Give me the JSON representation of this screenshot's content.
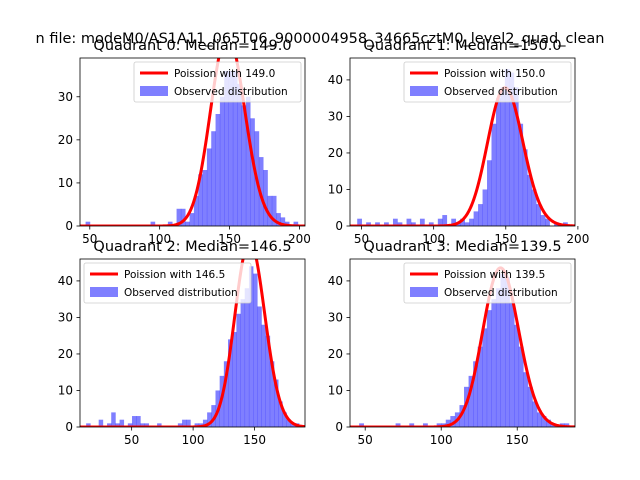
{
  "figure": {
    "suptitle": "n file: modeM0/AS1A11_065T06_9000004958_34665cztM0_level2_quad_clean"
  },
  "colors": {
    "hist": "#0000ff",
    "hist_alpha": 0.5,
    "fit": "#ff0000"
  },
  "chart_data": [
    {
      "type": "bar+line",
      "title": "Quadrant 0: Median=149.0",
      "median": 149.0,
      "xlim": [
        43,
        204
      ],
      "ylim": [
        0,
        39
      ],
      "xticks": [
        50,
        100,
        150,
        200
      ],
      "yticks": [
        0,
        10,
        20,
        30
      ],
      "legend_position": "upper right",
      "fit_label": "Poission with 149.0",
      "hist_label": "Observed distribution",
      "bin_width": 3.1,
      "bins": [
        [
          47.0,
          1
        ],
        [
          93.5,
          1
        ],
        [
          105.9,
          1
        ],
        [
          112.1,
          4
        ],
        [
          115.2,
          4
        ],
        [
          118.3,
          1
        ],
        [
          121.4,
          3
        ],
        [
          124.5,
          7
        ],
        [
          127.6,
          12
        ],
        [
          130.7,
          13
        ],
        [
          133.8,
          18
        ],
        [
          136.9,
          22
        ],
        [
          140.0,
          26
        ],
        [
          143.1,
          30
        ],
        [
          146.2,
          36
        ],
        [
          149.3,
          36
        ],
        [
          152.4,
          36
        ],
        [
          155.5,
          33
        ],
        [
          158.6,
          28
        ],
        [
          161.7,
          30
        ],
        [
          164.8,
          25
        ],
        [
          167.9,
          22
        ],
        [
          171.0,
          16
        ],
        [
          174.1,
          13
        ],
        [
          177.2,
          7
        ],
        [
          180.3,
          7
        ],
        [
          183.4,
          3
        ],
        [
          186.5,
          2
        ],
        [
          189.6,
          1
        ],
        [
          195.8,
          1
        ]
      ]
    },
    {
      "type": "bar+line",
      "title": "Quadrant 1: Median=150.0",
      "median": 150.0,
      "xlim": [
        42,
        198
      ],
      "ylim": [
        0,
        46
      ],
      "xticks": [
        50,
        100,
        150,
        200
      ],
      "yticks": [
        0,
        10,
        20,
        30,
        40
      ],
      "legend_position": "upper right",
      "fit_label": "Poission with 150.0",
      "hist_label": "Observed distribution",
      "bin_width": 3.1,
      "bins": [
        [
          47.0,
          2
        ],
        [
          53.2,
          1
        ],
        [
          59.4,
          1
        ],
        [
          65.6,
          1
        ],
        [
          71.8,
          2
        ],
        [
          75.0,
          1
        ],
        [
          81.2,
          2
        ],
        [
          84.3,
          1
        ],
        [
          90.5,
          2
        ],
        [
          96.7,
          1
        ],
        [
          102.9,
          2
        ],
        [
          106.0,
          3
        ],
        [
          112.2,
          2
        ],
        [
          115.3,
          1
        ],
        [
          118.4,
          2
        ],
        [
          121.5,
          1
        ],
        [
          124.6,
          2
        ],
        [
          127.7,
          4
        ],
        [
          130.8,
          6
        ],
        [
          133.9,
          10
        ],
        [
          137.0,
          18
        ],
        [
          140.1,
          28
        ],
        [
          143.2,
          35
        ],
        [
          146.3,
          38
        ],
        [
          149.4,
          43
        ],
        [
          152.5,
          42
        ],
        [
          155.6,
          38
        ],
        [
          158.7,
          28
        ],
        [
          161.8,
          21
        ],
        [
          164.9,
          14
        ],
        [
          168.0,
          10
        ],
        [
          171.1,
          6
        ],
        [
          174.2,
          3
        ],
        [
          177.3,
          2
        ],
        [
          183.5,
          1
        ],
        [
          189.7,
          1
        ]
      ]
    },
    {
      "type": "bar+line",
      "title": "Quadrant 2: Median=146.5",
      "median": 146.5,
      "xlim": [
        8,
        191
      ],
      "ylim": [
        0,
        46
      ],
      "xticks": [
        50,
        100,
        150
      ],
      "yticks": [
        0,
        10,
        20,
        30,
        40
      ],
      "legend_position": "upper left",
      "fit_label": "Poission with 146.5",
      "hist_label": "Observed distribution",
      "bin_width": 3.4,
      "bins": [
        [
          13.0,
          1
        ],
        [
          23.2,
          2
        ],
        [
          30.0,
          1
        ],
        [
          33.4,
          4
        ],
        [
          36.8,
          1
        ],
        [
          40.2,
          2
        ],
        [
          46.9,
          1
        ],
        [
          50.3,
          3
        ],
        [
          53.7,
          3
        ],
        [
          57.1,
          1
        ],
        [
          60.5,
          1
        ],
        [
          70.7,
          1
        ],
        [
          87.6,
          1
        ],
        [
          91.0,
          2
        ],
        [
          94.4,
          2
        ],
        [
          101.2,
          1
        ],
        [
          104.6,
          1
        ],
        [
          108.0,
          2
        ],
        [
          111.4,
          4
        ],
        [
          114.8,
          6
        ],
        [
          118.2,
          10
        ],
        [
          121.6,
          14
        ],
        [
          125.0,
          18
        ],
        [
          128.4,
          24
        ],
        [
          131.8,
          26
        ],
        [
          135.2,
          31
        ],
        [
          138.6,
          35
        ],
        [
          142.0,
          38
        ],
        [
          145.4,
          44
        ],
        [
          148.8,
          42
        ],
        [
          152.2,
          33
        ],
        [
          155.6,
          28
        ],
        [
          159.0,
          25
        ],
        [
          162.4,
          18
        ],
        [
          165.8,
          13
        ],
        [
          169.2,
          7
        ],
        [
          172.6,
          4
        ],
        [
          176.0,
          2
        ],
        [
          179.4,
          1
        ],
        [
          182.8,
          1
        ]
      ]
    },
    {
      "type": "bar+line",
      "title": "Quadrant 3: Median=139.5",
      "median": 139.5,
      "xlim": [
        40,
        188
      ],
      "ylim": [
        0,
        46
      ],
      "xticks": [
        50,
        100,
        150
      ],
      "yticks": [
        0,
        10,
        20,
        30,
        40
      ],
      "legend_position": "upper right",
      "fit_label": "Poission with 139.5",
      "hist_label": "Observed distribution",
      "bin_width": 3.0,
      "bins": [
        [
          46.0,
          1
        ],
        [
          70.0,
          1
        ],
        [
          79.0,
          1
        ],
        [
          88.0,
          1
        ],
        [
          97.0,
          1
        ],
        [
          100.0,
          1
        ],
        [
          103.0,
          2
        ],
        [
          106.0,
          3
        ],
        [
          109.0,
          4
        ],
        [
          112.0,
          6
        ],
        [
          115.0,
          11
        ],
        [
          118.0,
          14
        ],
        [
          121.0,
          18
        ],
        [
          124.0,
          22
        ],
        [
          127.0,
          27
        ],
        [
          130.0,
          32
        ],
        [
          133.0,
          35
        ],
        [
          136.0,
          38
        ],
        [
          139.0,
          42
        ],
        [
          142.0,
          41
        ],
        [
          145.0,
          34
        ],
        [
          148.0,
          28
        ],
        [
          151.0,
          22
        ],
        [
          154.0,
          15
        ],
        [
          157.0,
          11
        ],
        [
          160.0,
          7
        ],
        [
          163.0,
          4
        ],
        [
          166.0,
          3
        ],
        [
          169.0,
          2
        ],
        [
          172.0,
          1
        ],
        [
          178.0,
          1
        ],
        [
          181.0,
          1
        ]
      ]
    }
  ]
}
